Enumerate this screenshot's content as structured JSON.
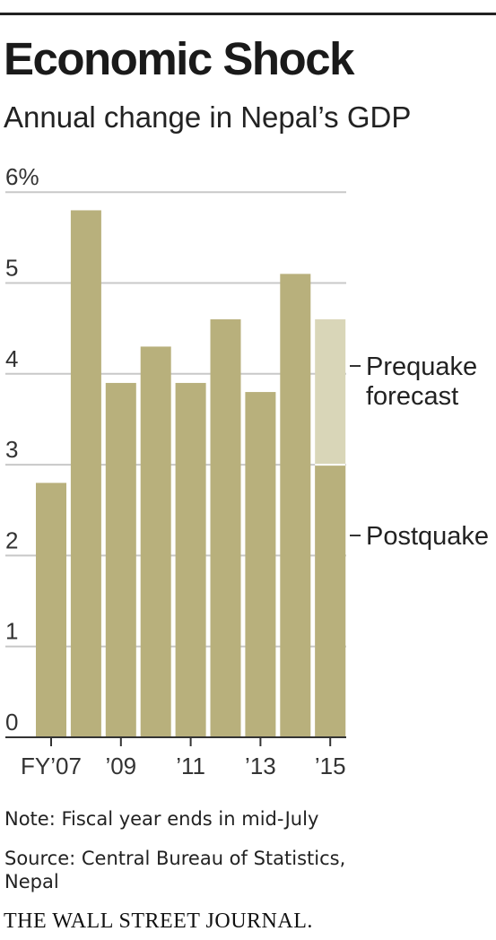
{
  "header": {
    "title": "Economic Shock",
    "subtitle": "Annual change in Nepal’s GDP"
  },
  "chart_data": {
    "type": "bar",
    "title": "Economic Shock",
    "subtitle": "Annual change in Nepal’s GDP",
    "categories": [
      "2007",
      "2008",
      "2009",
      "2010",
      "2011",
      "2012",
      "2013",
      "2014",
      "2015"
    ],
    "x_tick_labels": [
      "FY’07",
      "’09",
      "’11",
      "’13",
      "’15"
    ],
    "y_tick_labels": [
      "0",
      "1",
      "2",
      "3",
      "4",
      "5",
      "6%"
    ],
    "ylim": [
      0,
      6
    ],
    "grid": true,
    "series": [
      {
        "name": "Postquake",
        "values": [
          2.8,
          5.8,
          3.9,
          4.3,
          3.9,
          4.6,
          3.8,
          5.1,
          3.0
        ],
        "color": "#b8b07c"
      },
      {
        "name": "Prequake forecast",
        "values": [
          null,
          null,
          null,
          null,
          null,
          null,
          null,
          null,
          4.6
        ],
        "color": "#d9d6b8"
      }
    ],
    "annotations": [
      {
        "text": "Prequake",
        "text2": "forecast",
        "value": 4.6
      },
      {
        "text": "Postquake",
        "value": 3.0
      }
    ]
  },
  "footer": {
    "note": "Note: Fiscal year ends in mid-July",
    "source_line1": "Source: Central Bureau of Statistics,",
    "source_line2": "Nepal",
    "brand": "THE WALL STREET JOURNAL."
  }
}
